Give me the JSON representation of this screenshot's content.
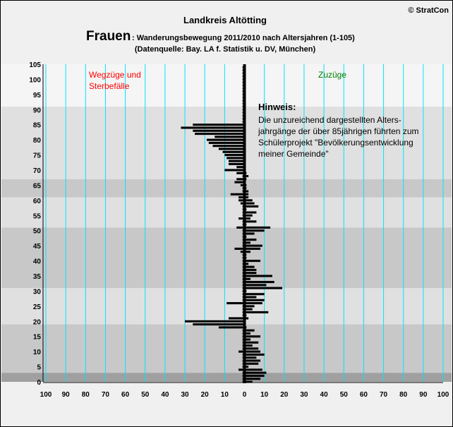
{
  "header": {
    "copyright": "© StratCon",
    "region": "Landkreis Altötting",
    "gender": "Frauen",
    "subtitle": ": Wanderungsbewegung 2011/2010 nach Altersjahren (1-105)",
    "source": "(Datenquelle: Bay. LA f. Statistik u. DV, München)"
  },
  "labels": {
    "left_line1": "Wegzüge und",
    "left_line2": "Sterbefälle",
    "right": "Zuzüge",
    "note_title": "Hinweis:",
    "note_lines": [
      "Die unzureichend dargestellten Alters-",
      "jahrgänge der über 85jährigen führten zum",
      "Schülerprojekt \"Bevölkerungsentwicklung",
      "meiner Gemeinde\""
    ]
  },
  "colors": {
    "left_label": "#ff0000",
    "right_label": "#008000",
    "bars": "#000000",
    "gridlines": "#00e5ff",
    "band_light": "#f5f5f5",
    "band_mid": "#e0e0e0",
    "band_dark": "#c8c8c8",
    "band_darker": "#a0a0a0"
  },
  "chart_data": {
    "type": "bar",
    "orientation": "horizontal",
    "x_range": [
      -100,
      100
    ],
    "x_ticks": [
      100,
      90,
      80,
      70,
      60,
      50,
      40,
      30,
      20,
      10,
      0,
      10,
      20,
      30,
      40,
      50,
      60,
      70,
      80,
      90,
      100
    ],
    "y_range": [
      0,
      105
    ],
    "y_ticks": [
      0,
      5,
      10,
      15,
      20,
      25,
      30,
      35,
      40,
      45,
      50,
      55,
      60,
      65,
      70,
      75,
      80,
      85,
      90,
      95,
      100,
      105
    ],
    "age_bands": [
      {
        "from": 0,
        "to": 3,
        "shade": "band_darker"
      },
      {
        "from": 3,
        "to": 19,
        "shade": "band_dark"
      },
      {
        "from": 19,
        "to": 31,
        "shade": "band_mid"
      },
      {
        "from": 31,
        "to": 51,
        "shade": "band_dark"
      },
      {
        "from": 51,
        "to": 61,
        "shade": "band_mid"
      },
      {
        "from": 61,
        "to": 67,
        "shade": "band_dark"
      },
      {
        "from": 67,
        "to": 74,
        "shade": "band_mid"
      },
      {
        "from": 74,
        "to": 91,
        "shade": "band_mid"
      },
      {
        "from": 91,
        "to": 105,
        "shade": "band_light"
      }
    ],
    "series": [
      {
        "name": "Wegzüge und Sterbefälle",
        "values": [
          -1,
          -1,
          -1,
          -1,
          -3,
          -1,
          -1,
          -1,
          -1,
          -1,
          -3,
          -1,
          -1,
          -1,
          -1,
          -1,
          -1,
          -1,
          -13,
          -26,
          -30,
          -8,
          -1,
          -1,
          -1,
          -1,
          -9,
          -1,
          -1,
          -1,
          -1,
          -1,
          -1,
          -1,
          -1,
          -1,
          -1,
          -1,
          -1,
          -1,
          -1,
          -1,
          -1,
          -2,
          -5,
          -1,
          -1,
          -1,
          -1,
          -1,
          -1,
          -4,
          -1,
          -1,
          -3,
          -1,
          -1,
          -1,
          -1,
          -2,
          -3,
          -3,
          -7,
          -1,
          -1,
          -2,
          -5,
          -4,
          -1,
          -4,
          -10,
          -4,
          -8,
          -8,
          -9,
          -10,
          -11,
          -13,
          -16,
          -18,
          -19,
          -15,
          -25,
          -26,
          -32,
          -26,
          -1,
          -1,
          -1,
          -1,
          -1,
          -1,
          -1,
          -1,
          -1,
          -1,
          -1,
          -1,
          -1,
          -1,
          -1,
          -1,
          -1,
          -1,
          -1
        ]
      },
      {
        "name": "Zuzüge",
        "values": [
          4,
          8,
          10,
          11,
          9,
          2,
          7,
          8,
          6,
          10,
          8,
          7,
          4,
          7,
          3,
          8,
          3,
          5,
          1,
          0,
          0,
          2,
          1,
          12,
          4,
          5,
          9,
          10,
          6,
          10,
          1,
          19,
          11,
          15,
          3,
          14,
          6,
          6,
          5,
          2,
          8,
          1,
          1,
          3,
          8,
          9,
          3,
          6,
          1,
          5,
          10,
          13,
          1,
          6,
          3,
          4,
          6,
          1,
          7,
          5,
          4,
          2,
          2,
          2,
          1,
          1,
          0,
          1,
          2,
          1,
          0,
          0,
          0,
          0,
          0,
          0,
          0,
          0,
          0,
          0,
          0,
          0,
          0,
          0,
          0,
          0,
          0,
          0,
          0,
          0,
          0,
          0,
          0,
          0,
          0,
          0,
          0,
          0,
          0,
          0,
          0,
          0,
          0,
          0,
          0
        ]
      }
    ]
  }
}
